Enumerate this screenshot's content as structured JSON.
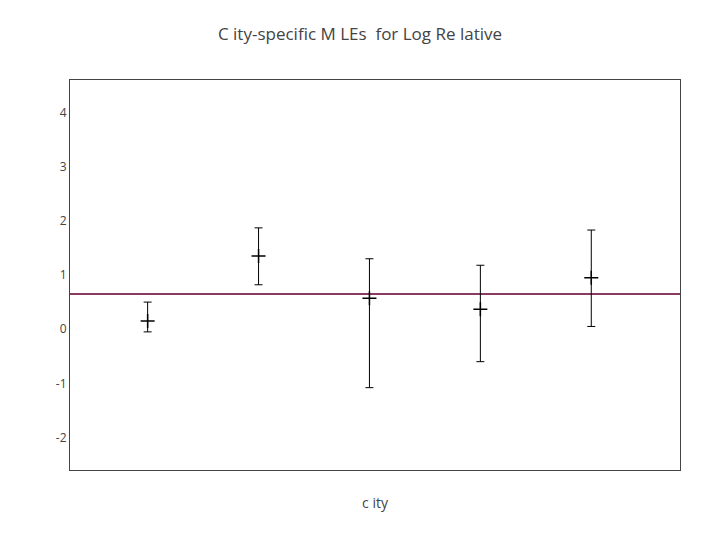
{
  "chart_data": {
    "type": "errorbar",
    "title": "C ity-specific M LEs  for Log Re lative",
    "xlabel": "c ity",
    "x": [
      1,
      2,
      3,
      4,
      5
    ],
    "values": [
      0.15,
      1.35,
      0.57,
      0.37,
      0.95
    ],
    "y_lower": [
      -0.05,
      0.82,
      -1.08,
      -0.6,
      0.05
    ],
    "y_upper": [
      0.5,
      1.87,
      1.3,
      1.18,
      1.83
    ],
    "color": "#000000",
    "marker": "cross",
    "hline": 0.65,
    "hline_color": "#8B3A62",
    "xlim": [
      0.3,
      5.8
    ],
    "xticks": [],
    "ylim": [
      -2.6,
      4.6
    ],
    "yticks": [
      -2,
      -1,
      0,
      1,
      2,
      3,
      4
    ],
    "tick_labels": "y",
    "grid": false
  }
}
